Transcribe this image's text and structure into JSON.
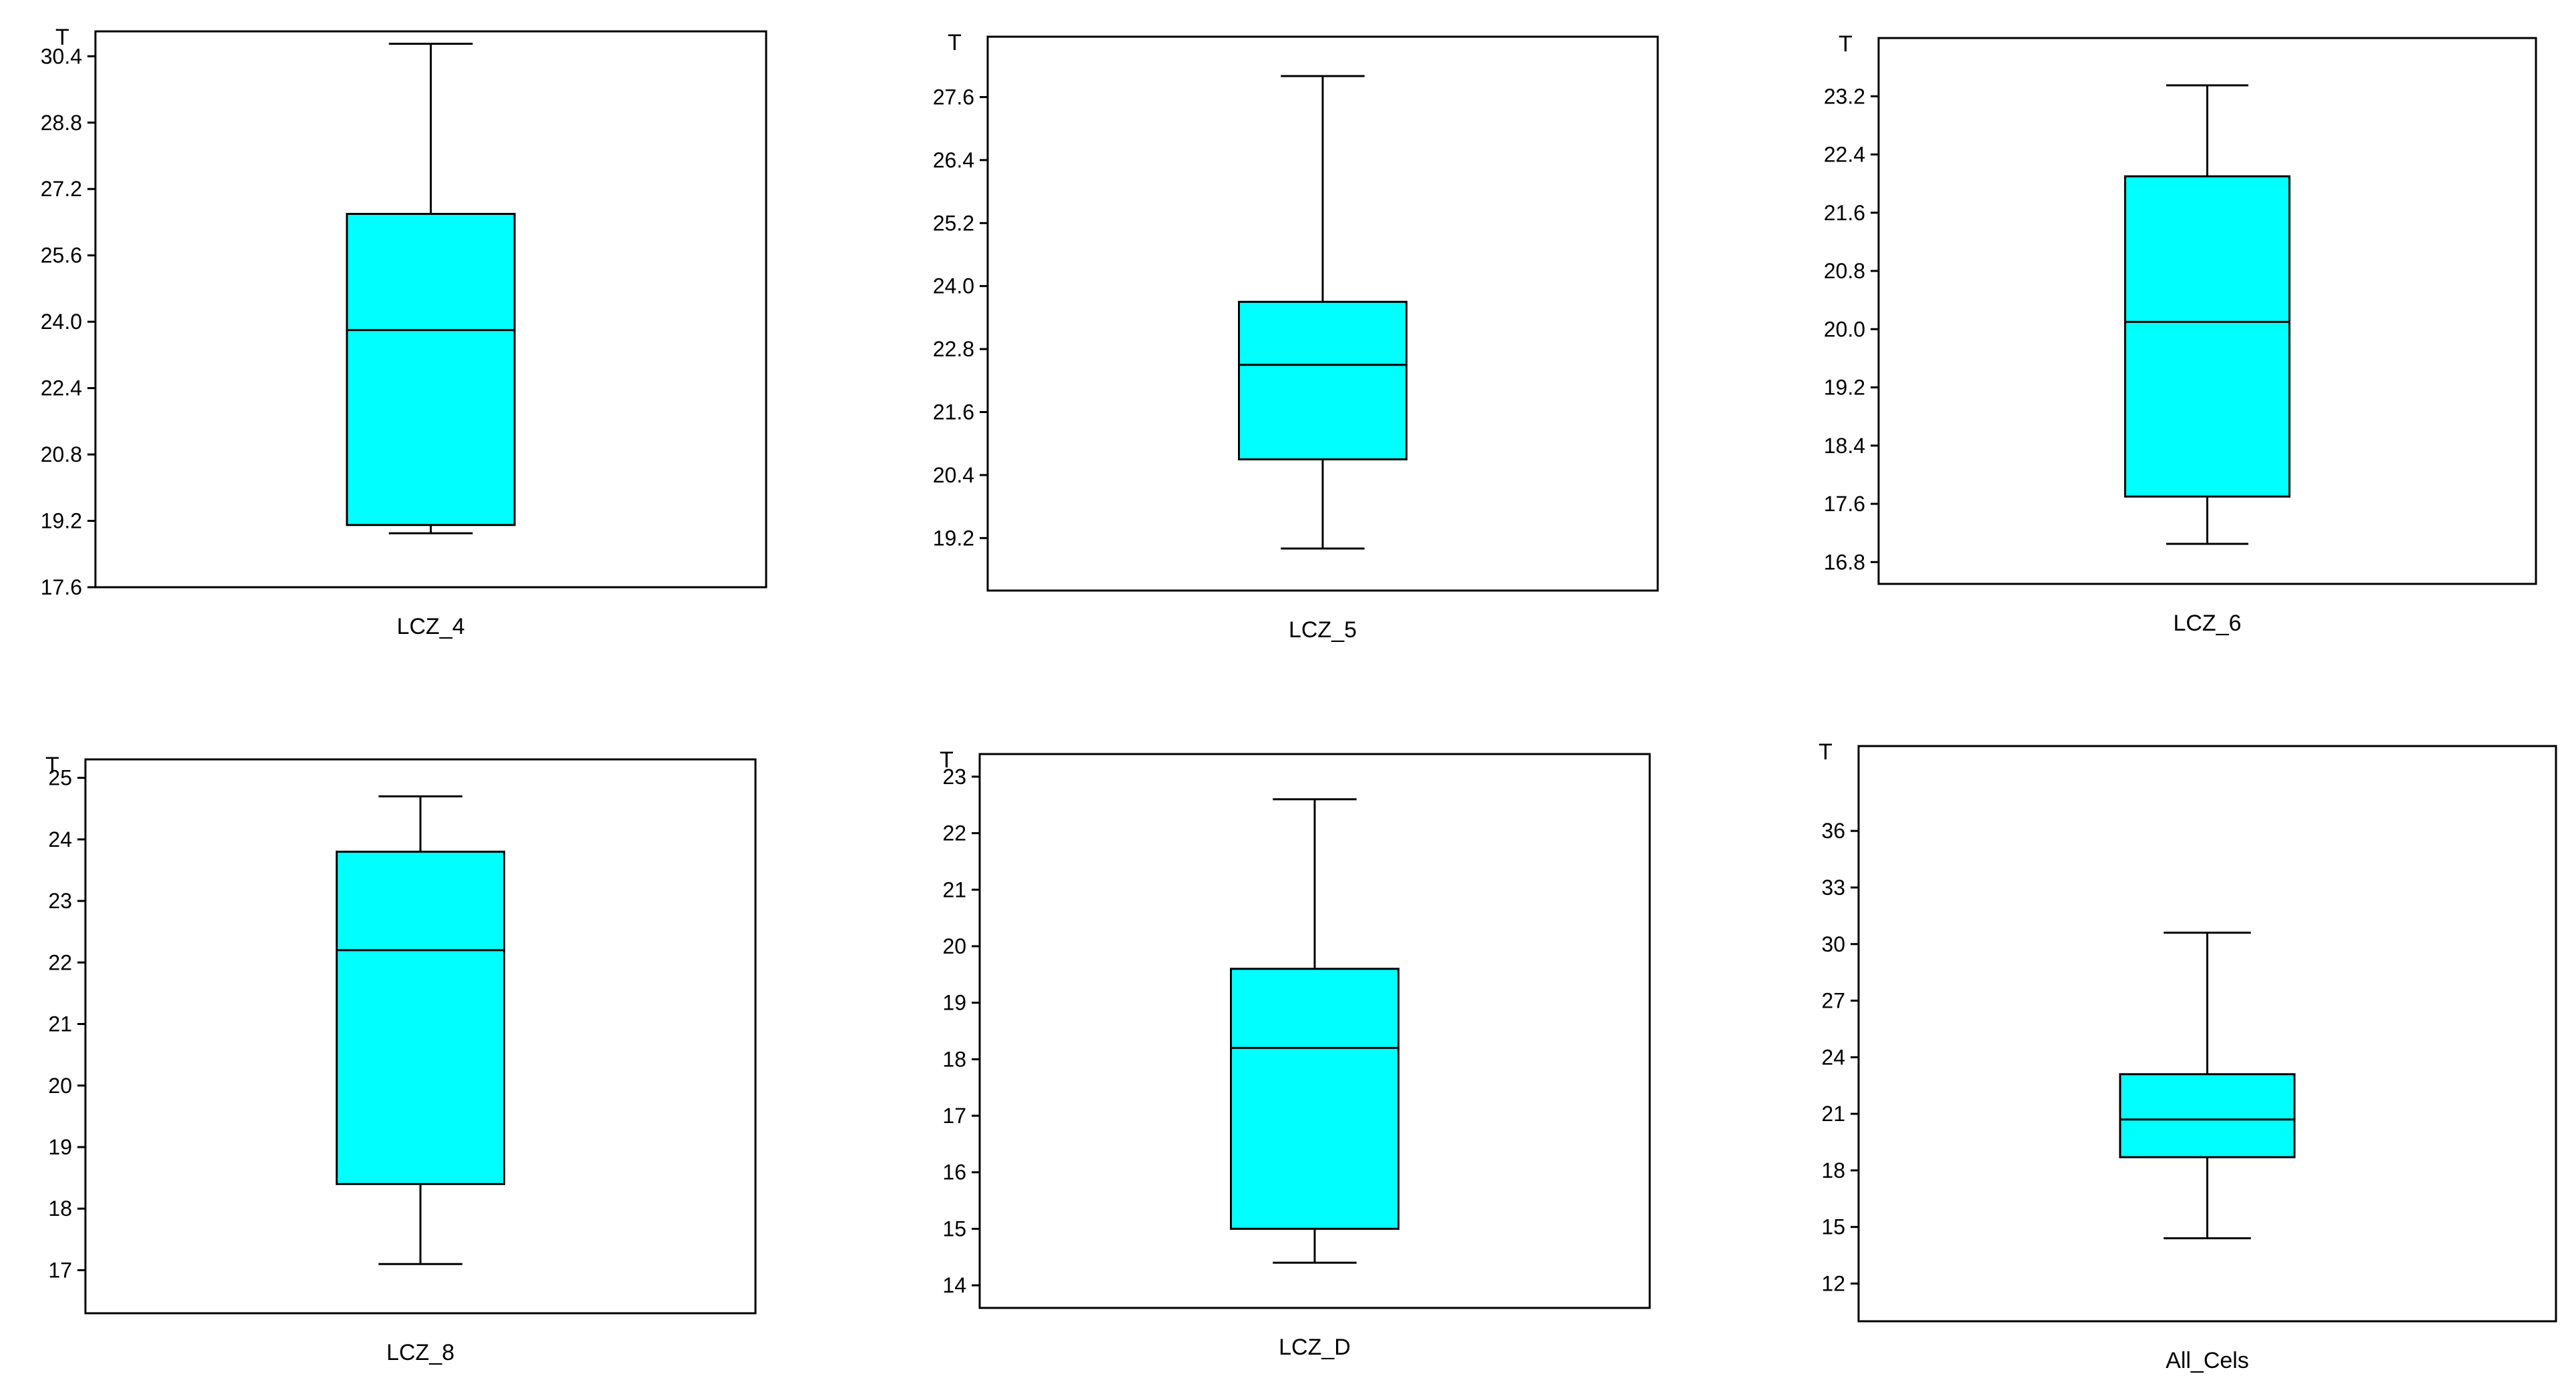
{
  "chart_data": [
    {
      "type": "box",
      "ylabel": "T",
      "category": "LCZ_4",
      "yticks": [
        17.6,
        19.2,
        20.8,
        22.4,
        24.0,
        25.6,
        27.2,
        28.8,
        30.4
      ],
      "ylim": [
        17.6,
        31.0
      ],
      "whisker_low": 18.9,
      "q1": 19.1,
      "median": 23.8,
      "q3": 26.6,
      "whisker_high": 30.7,
      "fill": "#00FFFF"
    },
    {
      "type": "box",
      "ylabel": "T",
      "category": "LCZ_5",
      "yticks": [
        19.2,
        20.4,
        21.6,
        22.8,
        24.0,
        25.2,
        26.4,
        27.6
      ],
      "ylim": [
        18.2,
        28.75
      ],
      "whisker_low": 19.0,
      "q1": 20.7,
      "median": 22.5,
      "q3": 23.7,
      "whisker_high": 28.0,
      "fill": "#00FFFF"
    },
    {
      "type": "box",
      "ylabel": "T",
      "category": "LCZ_6",
      "yticks": [
        16.8,
        17.6,
        18.4,
        19.2,
        20.0,
        20.8,
        21.6,
        22.4,
        23.2
      ],
      "ylim": [
        16.5,
        24.0
      ],
      "whisker_low": 17.05,
      "q1": 17.7,
      "median": 20.1,
      "q3": 22.1,
      "whisker_high": 23.35,
      "fill": "#00FFFF"
    },
    {
      "type": "box",
      "ylabel": "T",
      "category": "LCZ_8",
      "yticks": [
        17,
        18,
        19,
        20,
        21,
        22,
        23,
        24,
        25
      ],
      "ylim": [
        16.3,
        25.3
      ],
      "whisker_low": 17.1,
      "q1": 18.4,
      "median": 22.2,
      "q3": 23.8,
      "whisker_high": 24.7,
      "fill": "#00FFFF"
    },
    {
      "type": "box",
      "ylabel": "T",
      "category": "LCZ_D",
      "yticks": [
        14,
        15,
        16,
        17,
        18,
        19,
        20,
        21,
        22,
        23
      ],
      "ylim": [
        13.6,
        23.4
      ],
      "whisker_low": 14.4,
      "q1": 15.0,
      "median": 18.2,
      "q3": 19.6,
      "whisker_high": 22.6,
      "fill": "#00FFFF"
    },
    {
      "type": "box",
      "ylabel": "T",
      "category": "All_Cels",
      "yticks": [
        12,
        15,
        18,
        21,
        24,
        27,
        30,
        33,
        36
      ],
      "ylim": [
        10.0,
        40.5
      ],
      "whisker_low": 14.4,
      "q1": 18.7,
      "median": 20.7,
      "q3": 23.1,
      "whisker_high": 30.6,
      "fill": "#00FFFF"
    }
  ]
}
